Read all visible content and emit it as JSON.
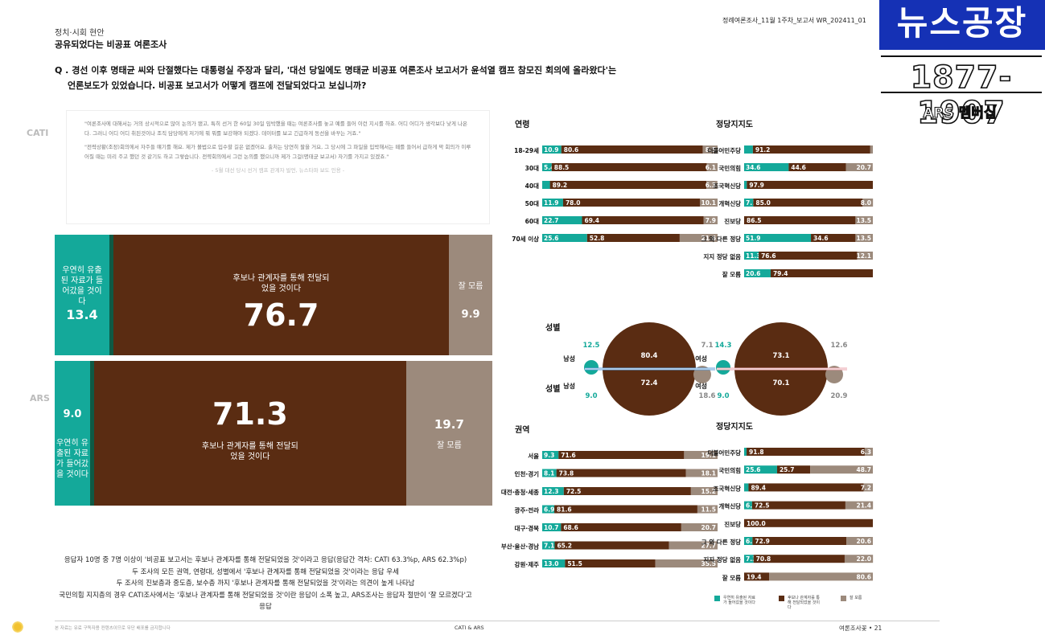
{
  "header": {
    "section": "정치·시회 현안",
    "title": "공유되었다는 비공표 여론조사",
    "report_code": "정례여론조사_11월 1주차_보고서   WR_202411_01"
  },
  "logo": {
    "title": "뉴스공장",
    "number": "1877-1907",
    "sub": "ARS 멤버십"
  },
  "question": {
    "line1": "Q . 경선 이후 명태균 씨와 단절했다는 대통령실 주장과 달리, '대선 당일에도 명태균 비공표 여론조사 보고서가 윤석열 캠프 참모진 회의에 올라왔다'는",
    "line2": "언론보도가 있었습니다. 비공표 보고서가 어떻게 캠프에 전달되었다고 보십니까?"
  },
  "quote": {
    "p1": "\"여론조사에 대해서는 거의 상시적으로 많이 논의가 됐고, 특히 선거 한 60일 30일 임박했을 때는 여론조사를 놓고 예를 들어 이런 지시를 하죠. 어디 어디가 생각보다 낮게 나온다. 그러니 어디 어디 취된것이나 조직 담당에게 저기에 뭐 뭐를 보강해야 되겠다. 데이터를 보고 긴급하게 동선을 바꾸는 거죠.\"",
    "p2": "\"전략상황(조정)회의에서 자주들 얘기를 해요. 제가 볼법으로 입수할 길은 없겠어요. 출처는 당연히 팔을 거요, 그 당시에 그 파일을 입박해서는 떼를 들어서 급하게 막 회의가 이루어질 때는 미리 주고 했던 것 같기도 하고 그렇습니다. 전략회의에서 그런 논의를 했으니까 제가 그걸(명태균 보고서) 자기를 가지고 있겠죠.\"",
    "source": "- 5월 대선 당시 선거 캠프 관계자 발언, 뉴스타파 보도 인용 -"
  },
  "main_chart": {
    "rows": [
      {
        "method": "CATI",
        "teal": {
          "label": "우연히 유출된 자료가 들어갔을 것이다",
          "value": "13.4"
        },
        "brown": {
          "label": "후보나 관계자를 통해 전달되었을 것이다",
          "value": "76.7"
        },
        "grey": {
          "label": "잘 모름",
          "value": "9.9"
        }
      },
      {
        "method": "ARS",
        "teal": {
          "label": "우연히 유출된 자료가 들어갔을 것이다",
          "value": "9.0"
        },
        "brown": {
          "label": "후보나 관계자를 통해 전달되었을 것이다",
          "value": "71.3"
        },
        "grey": {
          "label": "잘 모름",
          "value": "19.7"
        }
      }
    ]
  },
  "summary": [
    "응답자 10명 중 7명 이상이 '비공표 보고서는 후보나 관계자를 통해 전달되었을 것'이라고 응답(응답간 격차: CATI 63.3%p, ARS 62.3%p)",
    "두 조사의 모든 권역, 연령대, 성별에서 '후보나 관계자를 통해 전달되었을 것'이라는 응답 우세",
    "두 조사의 진보층과 중도층, 보수층 까지 '후보나 관계자를 통해 전달되었을 것'이라는 의견이 높게 나타남",
    "국민의힘 지지층의 경우 CATI조사에서는 '후보나 관계자를 통해 전달되었을 것'이란 응답이 소폭 높고, ARS조사는 응답자 절반이 '잘 모르겠다'고 응답"
  ],
  "colors": {
    "teal": "#14a99a",
    "brown": "#5a2c12",
    "grey": "#9c8a7c",
    "dark_teal": "#0e5a45"
  },
  "legend": [
    {
      "color": "#14a99a",
      "label": "우연히 유출된 자료가 들어갔을 것이다"
    },
    {
      "color": "#5a2c12",
      "label": "후보나 관계자를 통해 전달되었을 것이다"
    },
    {
      "color": "#9c8a7c",
      "label": "잘 모름"
    }
  ],
  "footer": {
    "left": "본 자료는 유료 구독자용 컨텐츠이므로 무단 배포를 금지합니다",
    "center": "CATI & ARS",
    "right": "여론조사꽃 • 21"
  },
  "chart_data": [
    {
      "type": "bar",
      "title": "연령",
      "categories": [
        "18-29세",
        "30대",
        "40대",
        "50대",
        "60대",
        "70세 이상"
      ],
      "series": [
        {
          "values": [
            10.9,
            5.4,
            4.4,
            11.9,
            22.7,
            25.6
          ]
        },
        {
          "values": [
            80.6,
            88.5,
            89.2,
            78.0,
            69.4,
            52.8
          ]
        },
        {
          "values": [
            8.5,
            6.1,
            6.3,
            10.1,
            7.9,
            21.6
          ]
        }
      ],
      "labels": [
        [
          "10.9",
          "80.6",
          "8.5"
        ],
        [
          "5.4",
          "88.5",
          "6.1"
        ],
        [
          "",
          "89.2",
          "6.3"
        ],
        [
          "11.9",
          "78.0",
          "10.1"
        ],
        [
          "22.7",
          "69.4",
          "7.9"
        ],
        [
          "25.6",
          "52.8",
          "21.6"
        ]
      ]
    },
    {
      "type": "bar",
      "title": "정당지지도",
      "categories": [
        "더불어민주당",
        "국민의힘",
        "조국혁신당",
        "개혁신당",
        "진보당",
        "그 외 다른 정당",
        "지지 정당 없음",
        "잘 모름"
      ],
      "series": [
        {
          "values": [
            6.8,
            34.6,
            2.1,
            7.1,
            0,
            51.9,
            11.3,
            20.6
          ]
        },
        {
          "values": [
            91.2,
            44.6,
            97.9,
            85.0,
            86.5,
            34.6,
            76.6,
            79.4
          ]
        },
        {
          "values": [
            2.0,
            20.7,
            0,
            8.0,
            13.5,
            13.5,
            12.1,
            0
          ]
        }
      ],
      "labels": [
        [
          "",
          "91.2",
          ""
        ],
        [
          "34.6",
          "44.6",
          "20.7"
        ],
        [
          "",
          "97.9",
          ""
        ],
        [
          "7.1",
          "85.0",
          "8.0"
        ],
        [
          "",
          "86.5",
          "13.5"
        ],
        [
          "51.9",
          "34.6",
          "13.5"
        ],
        [
          "11.3",
          "76.6",
          "12.1"
        ],
        [
          "20.6",
          "79.4",
          ""
        ]
      ]
    },
    {
      "type": "bar",
      "title": "권역",
      "categories": [
        "서울",
        "인천·경기",
        "대전·충청·세종",
        "광주·전라",
        "대구·경북",
        "부산·울산·경남",
        "강원·제주"
      ],
      "series": [
        {
          "values": [
            9.3,
            8.1,
            12.3,
            6.9,
            10.7,
            7.1,
            13.0
          ]
        },
        {
          "values": [
            71.6,
            73.8,
            72.5,
            81.6,
            68.6,
            65.2,
            51.5
          ]
        },
        {
          "values": [
            19.1,
            18.1,
            15.2,
            11.5,
            20.7,
            27.7,
            35.5
          ]
        }
      ],
      "labels": [
        [
          "9.3",
          "71.6",
          "19.1"
        ],
        [
          "8.1",
          "73.8",
          "18.1"
        ],
        [
          "12.3",
          "72.5",
          "15.2"
        ],
        [
          "6.9",
          "81.6",
          "11.5"
        ],
        [
          "10.7",
          "68.6",
          "20.7"
        ],
        [
          "7.1",
          "65.2",
          "27.7"
        ],
        [
          "13.0",
          "51.5",
          "35.5"
        ]
      ]
    },
    {
      "type": "bar",
      "title": "정당지지도",
      "categories": [
        "더불어민주당",
        "국민의힘",
        "조국혁신당",
        "개혁신당",
        "진보당",
        "그 외 다른 정당",
        "지지 정당 없음",
        "잘 모름"
      ],
      "series": [
        {
          "values": [
            1.9,
            25.6,
            3.4,
            6.2,
            0,
            6.5,
            7.3,
            0
          ]
        },
        {
          "values": [
            91.8,
            25.7,
            89.4,
            72.5,
            100.0,
            72.9,
            70.8,
            19.4
          ]
        },
        {
          "values": [
            6.3,
            48.7,
            7.2,
            21.4,
            0,
            20.6,
            22.0,
            80.6
          ]
        }
      ],
      "labels": [
        [
          "",
          "91.8",
          "6.3"
        ],
        [
          "25.6",
          "25.7",
          "48.7"
        ],
        [
          "",
          "89.4",
          "7.2"
        ],
        [
          "6.2",
          "72.5",
          "21.4"
        ],
        [
          "",
          "100.0",
          ""
        ],
        [
          "6.5",
          "72.9",
          "20.6"
        ],
        [
          "7.3",
          "70.8",
          "22.0"
        ],
        [
          "",
          "19.4",
          "80.6"
        ]
      ]
    },
    {
      "type": "pie",
      "title": "성별",
      "groups": [
        {
          "name": "남성",
          "top": [
            12.5,
            80.4,
            7.1
          ],
          "bottom": [
            9.0,
            72.4,
            18.6
          ]
        },
        {
          "name": "여성",
          "top": [
            14.3,
            73.1,
            12.6
          ],
          "bottom": [
            9.0,
            70.1,
            20.9
          ]
        }
      ]
    }
  ]
}
